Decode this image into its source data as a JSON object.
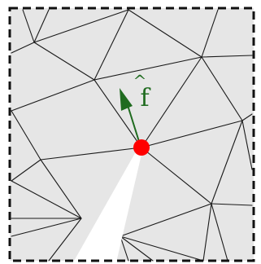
{
  "diagram": {
    "vector_label": "f",
    "vector_hat": "^",
    "colors": {
      "background": "#ffffff",
      "mesh_fill": "#e6e6e6",
      "edge": "#1a1a1a",
      "border": "#111111",
      "vertex": "#ff0000",
      "vector": "#1f6b1f",
      "gap": "#ffffff"
    },
    "icons": {
      "vertex": "red-dot",
      "vector": "arrow"
    }
  }
}
